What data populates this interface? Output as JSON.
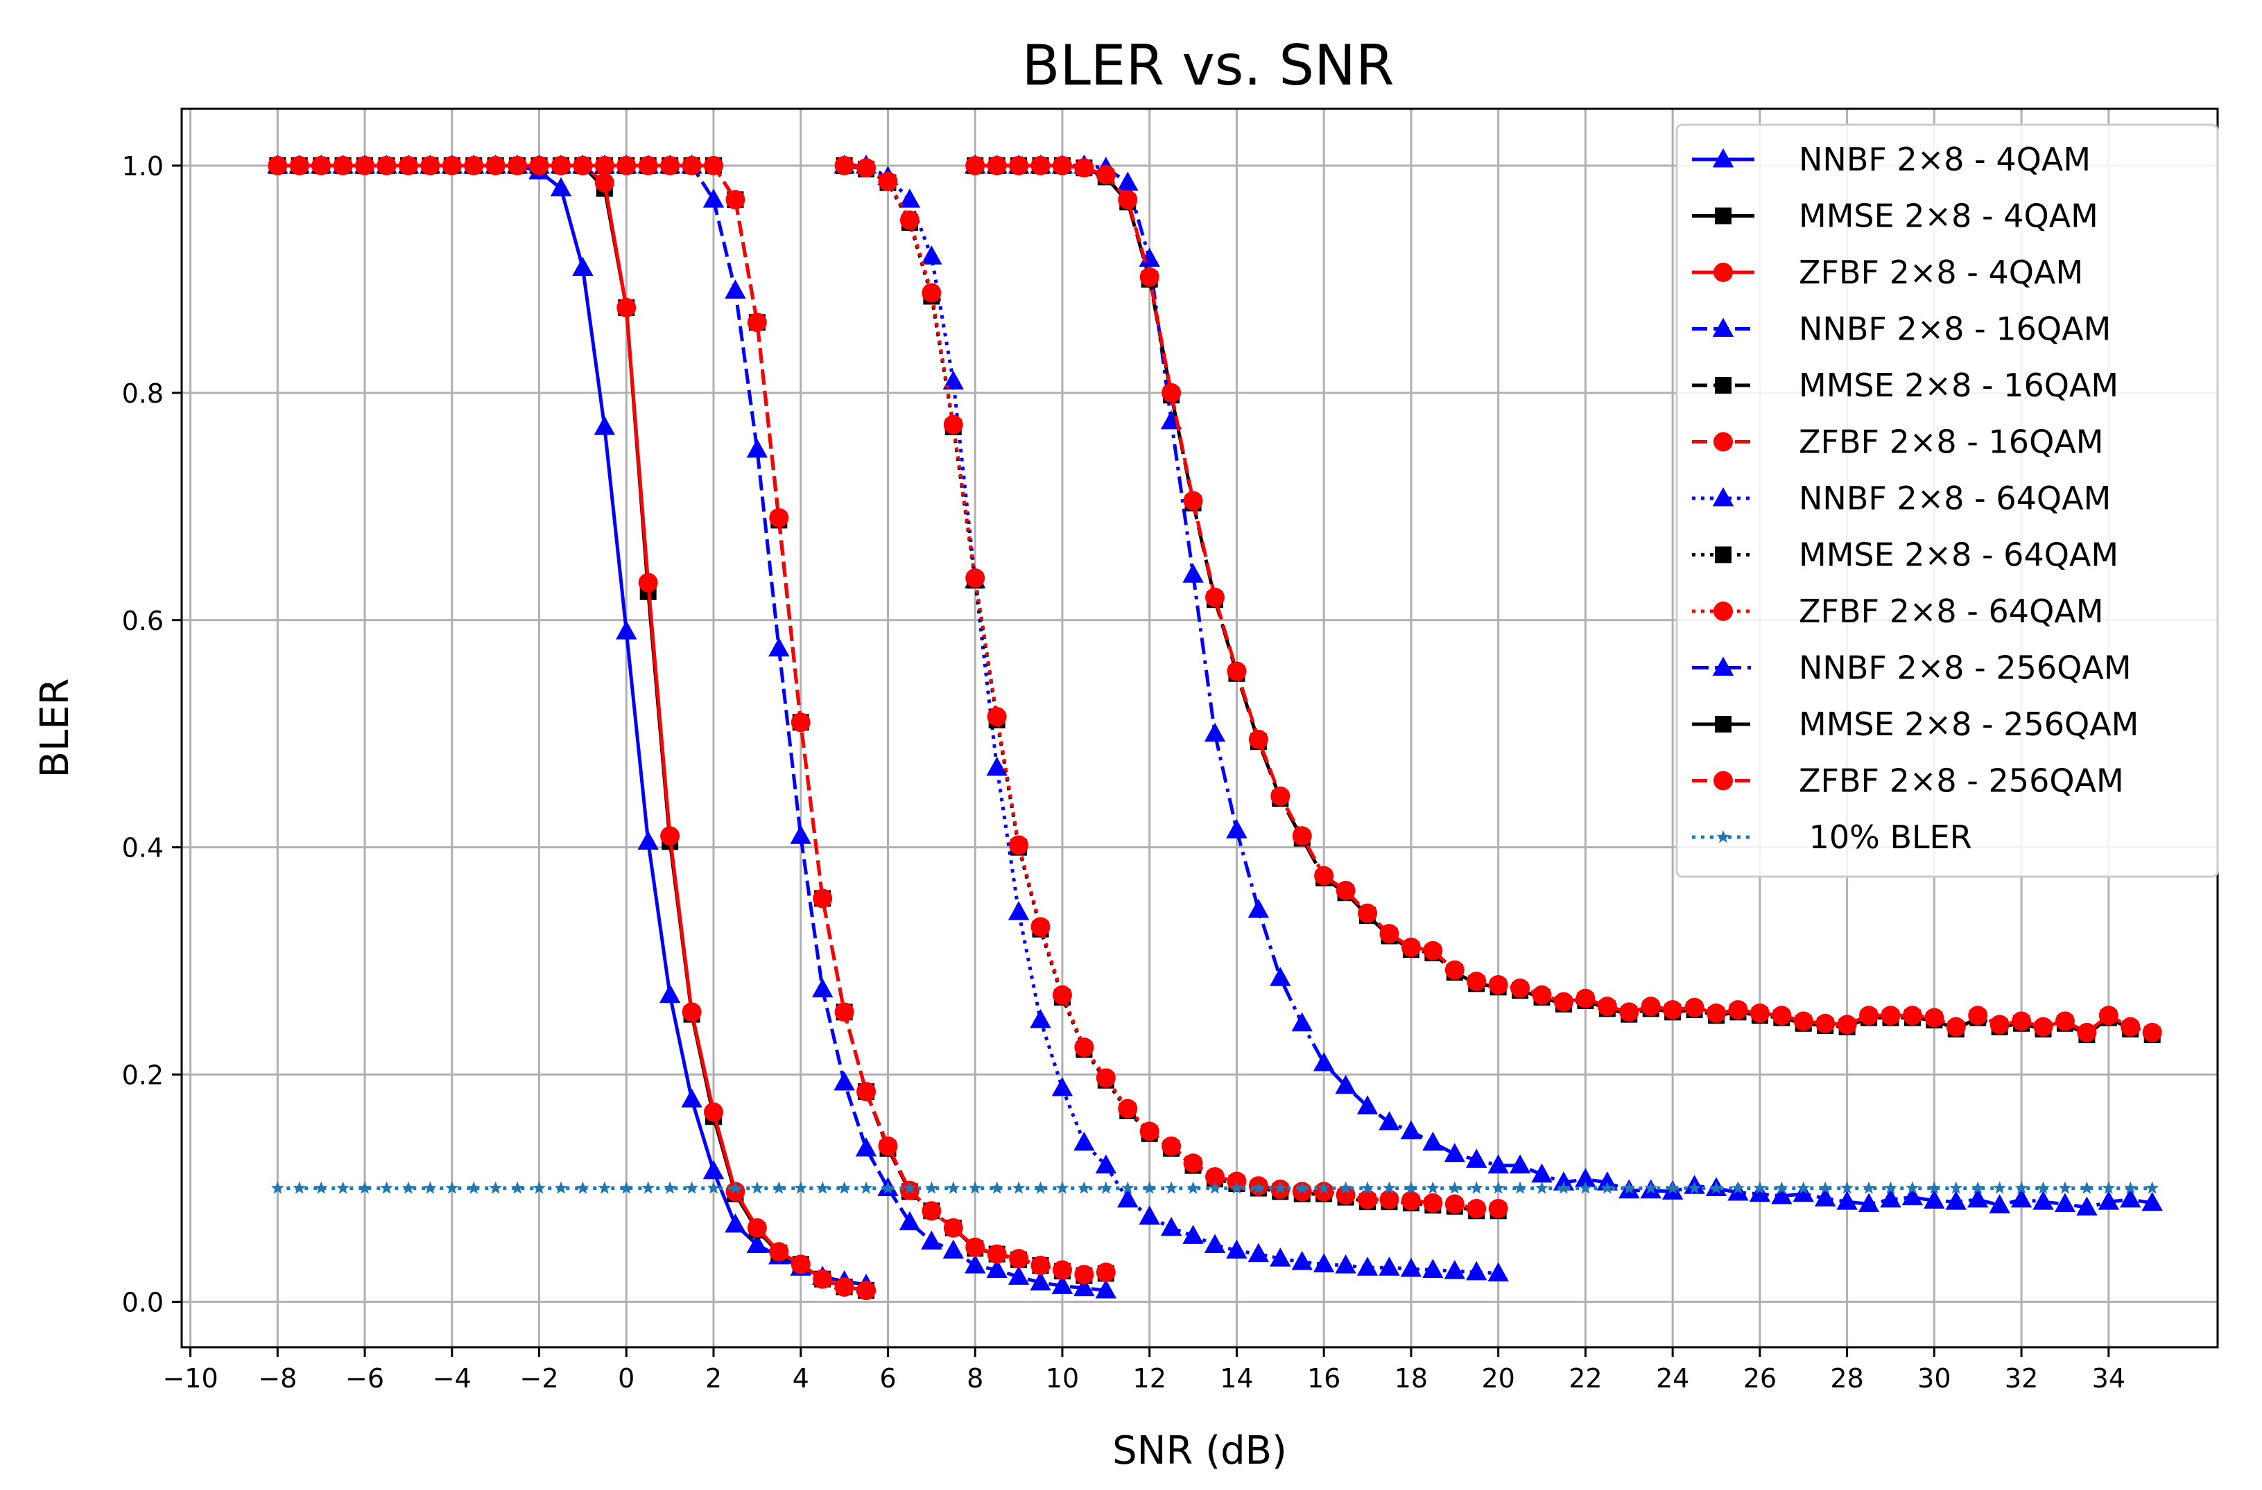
{
  "chart_data": {
    "type": "line",
    "title": "BLER vs. SNR",
    "xlabel": "SNR (dB)",
    "ylabel": "BLER",
    "xlim": [
      -10.2,
      36.5
    ],
    "ylim": [
      -0.04,
      1.05
    ],
    "grid": true,
    "legend_position": "top-right",
    "x_ticks": [
      -10,
      -8,
      -6,
      -4,
      -2,
      0,
      2,
      4,
      6,
      8,
      10,
      12,
      14,
      16,
      18,
      20,
      22,
      24,
      26,
      28,
      30,
      32,
      34
    ],
    "x_tick_labels": [
      "−10",
      "−8",
      "−6",
      "−4",
      "−2",
      "0",
      "2",
      "4",
      "6",
      "8",
      "10",
      "12",
      "14",
      "16",
      "18",
      "20",
      "22",
      "24",
      "26",
      "28",
      "30",
      "32",
      "34"
    ],
    "y_ticks": [
      0,
      0.2,
      0.4,
      0.6,
      0.8,
      1.0
    ],
    "y_tick_labels": [
      "0.0",
      "0.2",
      "0.4",
      "0.6",
      "0.8",
      "1.0"
    ],
    "colors": {
      "blue": "#0000ff",
      "black": "#000000",
      "red": "#ff0000",
      "ref": "#1f77b4"
    },
    "series": [
      {
        "name": "NNBF 2×8 - 4QAM",
        "color": "#0000ff",
        "dash": "solid",
        "marker": "triangle",
        "x": [
          -8,
          -7.5,
          -7,
          -6.5,
          -6,
          -5.5,
          -5,
          -4.5,
          -4,
          -3.5,
          -3,
          -2.5,
          -2,
          -1.5,
          -1,
          -0.5,
          0,
          0.5,
          1,
          1.5,
          2,
          2.5,
          3,
          3.5,
          4,
          4.5,
          5,
          5.5
        ],
        "y": [
          1,
          1,
          1,
          1,
          1,
          1,
          1,
          1,
          1,
          1,
          1,
          1,
          0.995,
          0.98,
          0.91,
          0.77,
          0.59,
          0.405,
          0.27,
          0.178,
          0.115,
          0.068,
          0.05,
          0.04,
          0.03,
          0.022,
          0.018,
          0.015
        ]
      },
      {
        "name": "MMSE 2×8 - 4QAM",
        "color": "#000000",
        "dash": "solid",
        "marker": "square",
        "x": [
          -8,
          -7.5,
          -7,
          -6.5,
          -6,
          -5.5,
          -5,
          -4.5,
          -4,
          -3.5,
          -3,
          -2.5,
          -2,
          -1.5,
          -1,
          -0.5,
          0,
          0.5,
          1,
          1.5,
          2,
          2.5,
          3,
          3.5,
          4,
          4.5,
          5,
          5.5
        ],
        "y": [
          1,
          1,
          1,
          1,
          1,
          1,
          1,
          1,
          1,
          1,
          1,
          1,
          1,
          1,
          1,
          0.98,
          0.875,
          0.625,
          0.405,
          0.253,
          0.163,
          0.095,
          0.063,
          0.043,
          0.033,
          0.02,
          0.013,
          0.01
        ]
      },
      {
        "name": "ZFBF 2×8 - 4QAM",
        "color": "#ff0000",
        "dash": "solid",
        "marker": "circle",
        "x": [
          -8,
          -7.5,
          -7,
          -6.5,
          -6,
          -5.5,
          -5,
          -4.5,
          -4,
          -3.5,
          -3,
          -2.5,
          -2,
          -1.5,
          -1,
          -0.5,
          0,
          0.5,
          1,
          1.5,
          2,
          2.5,
          3,
          3.5,
          4,
          4.5,
          5,
          5.5
        ],
        "y": [
          1,
          1,
          1,
          1,
          1,
          1,
          1,
          1,
          1,
          1,
          1,
          1,
          1,
          1,
          1,
          0.985,
          0.875,
          0.633,
          0.41,
          0.255,
          0.167,
          0.097,
          0.065,
          0.044,
          0.033,
          0.02,
          0.013,
          0.01
        ]
      },
      {
        "name": "NNBF 2×8 - 16QAM",
        "color": "#0000ff",
        "dash": "dashed",
        "marker": "triangle",
        "x": [
          -2,
          -1.5,
          -1,
          -0.5,
          0,
          0.5,
          1,
          1.5,
          2,
          2.5,
          3,
          3.5,
          4,
          4.5,
          5,
          5.5,
          6,
          6.5,
          7,
          7.5,
          8,
          8.5,
          9,
          9.5,
          10,
          10.5,
          11
        ],
        "y": [
          1,
          1,
          1,
          1,
          1,
          1,
          1,
          1,
          0.97,
          0.89,
          0.75,
          0.575,
          0.41,
          0.275,
          0.193,
          0.135,
          0.1,
          0.07,
          0.053,
          0.045,
          0.032,
          0.028,
          0.022,
          0.017,
          0.014,
          0.012,
          0.01
        ]
      },
      {
        "name": "MMSE 2×8 - 16QAM",
        "color": "#000000",
        "dash": "dashed",
        "marker": "square",
        "x": [
          -2,
          -1.5,
          -1,
          -0.5,
          0,
          0.5,
          1,
          1.5,
          2,
          2.5,
          3,
          3.5,
          4,
          4.5,
          5,
          5.5,
          6,
          6.5,
          7,
          7.5,
          8,
          8.5,
          9,
          9.5,
          10,
          10.5,
          11
        ],
        "y": [
          1,
          1,
          1,
          1,
          1,
          1,
          1,
          1,
          1,
          0.97,
          0.862,
          0.688,
          0.51,
          0.355,
          0.255,
          0.185,
          0.135,
          0.097,
          0.08,
          0.065,
          0.047,
          0.042,
          0.037,
          0.032,
          0.027,
          0.023,
          0.025
        ]
      },
      {
        "name": "ZFBF 2×8 - 16QAM",
        "color": "#ff0000",
        "dash": "dashed",
        "marker": "circle",
        "x": [
          -2,
          -1.5,
          -1,
          -0.5,
          0,
          0.5,
          1,
          1.5,
          2,
          2.5,
          3,
          3.5,
          4,
          4.5,
          5,
          5.5,
          6,
          6.5,
          7,
          7.5,
          8,
          8.5,
          9,
          9.5,
          10,
          10.5,
          11
        ],
        "y": [
          1,
          1,
          1,
          1,
          1,
          1,
          1,
          1,
          1,
          0.97,
          0.862,
          0.69,
          0.51,
          0.355,
          0.255,
          0.185,
          0.137,
          0.098,
          0.08,
          0.065,
          0.048,
          0.042,
          0.038,
          0.032,
          0.028,
          0.024,
          0.026
        ]
      },
      {
        "name": "NNBF 2×8 - 64QAM",
        "color": "#0000ff",
        "dash": "dotted",
        "marker": "triangle",
        "x": [
          5,
          5.5,
          6,
          6.5,
          7,
          7.5,
          8,
          8.5,
          9,
          9.5,
          10,
          10.5,
          11,
          11.5,
          12,
          12.5,
          13,
          13.5,
          14,
          14.5,
          15,
          15.5,
          16,
          16.5,
          17,
          17.5,
          18,
          18.5,
          19,
          19.5,
          20
        ],
        "y": [
          1,
          1,
          0.99,
          0.97,
          0.92,
          0.81,
          0.635,
          0.47,
          0.343,
          0.248,
          0.188,
          0.14,
          0.12,
          0.09,
          0.075,
          0.065,
          0.058,
          0.05,
          0.045,
          0.042,
          0.038,
          0.035,
          0.033,
          0.032,
          0.03,
          0.03,
          0.029,
          0.028,
          0.027,
          0.026,
          0.025
        ]
      },
      {
        "name": "MMSE 2×8 - 64QAM",
        "color": "#000000",
        "dash": "dotted",
        "marker": "square",
        "x": [
          5,
          5.5,
          6,
          6.5,
          7,
          7.5,
          8,
          8.5,
          9,
          9.5,
          10,
          10.5,
          11,
          11.5,
          12,
          12.5,
          13,
          13.5,
          14,
          14.5,
          15,
          15.5,
          16,
          16.5,
          17,
          17.5,
          18,
          18.5,
          19,
          19.5,
          20
        ],
        "y": [
          1,
          0.997,
          0.985,
          0.95,
          0.885,
          0.77,
          0.635,
          0.512,
          0.4,
          0.328,
          0.268,
          0.222,
          0.195,
          0.168,
          0.148,
          0.135,
          0.12,
          0.108,
          0.104,
          0.1,
          0.097,
          0.095,
          0.095,
          0.092,
          0.088,
          0.088,
          0.087,
          0.085,
          0.084,
          0.08,
          0.08
        ]
      },
      {
        "name": "ZFBF 2×8 - 64QAM",
        "color": "#ff0000",
        "dash": "dotted",
        "marker": "circle",
        "x": [
          5,
          5.5,
          6,
          6.5,
          7,
          7.5,
          8,
          8.5,
          9,
          9.5,
          10,
          10.5,
          11,
          11.5,
          12,
          12.5,
          13,
          13.5,
          14,
          14.5,
          15,
          15.5,
          16,
          16.5,
          17,
          17.5,
          18,
          18.5,
          19,
          19.5,
          20
        ],
        "y": [
          1,
          0.998,
          0.986,
          0.952,
          0.888,
          0.772,
          0.637,
          0.515,
          0.402,
          0.33,
          0.27,
          0.224,
          0.197,
          0.17,
          0.15,
          0.137,
          0.122,
          0.11,
          0.106,
          0.102,
          0.099,
          0.097,
          0.097,
          0.094,
          0.09,
          0.09,
          0.089,
          0.087,
          0.086,
          0.082,
          0.082
        ]
      },
      {
        "name": "NNBF 2×8 - 256QAM",
        "color": "#0000ff",
        "dash": "dashdot",
        "marker": "triangle",
        "x": [
          8,
          8.5,
          9,
          9.5,
          10,
          10.5,
          11,
          11.5,
          12,
          12.5,
          13,
          13.5,
          14,
          14.5,
          15,
          15.5,
          16,
          16.5,
          17,
          17.5,
          18,
          18.5,
          19,
          19.5,
          20,
          20.5,
          21,
          21.5,
          22,
          22.5,
          23,
          23.5,
          24,
          24.5,
          25,
          25.5,
          26,
          26.5,
          27,
          27.5,
          28,
          28.5,
          29,
          29.5,
          30,
          30.5,
          31,
          31.5,
          32,
          32.5,
          33,
          33.5,
          34,
          34.5,
          35
        ],
        "y": [
          1,
          1,
          1,
          1,
          1,
          1,
          0.998,
          0.985,
          0.918,
          0.775,
          0.64,
          0.5,
          0.415,
          0.345,
          0.285,
          0.245,
          0.21,
          0.19,
          0.172,
          0.158,
          0.15,
          0.14,
          0.13,
          0.125,
          0.12,
          0.12,
          0.112,
          0.105,
          0.108,
          0.105,
          0.098,
          0.098,
          0.097,
          0.102,
          0.1,
          0.096,
          0.095,
          0.093,
          0.095,
          0.091,
          0.088,
          0.086,
          0.09,
          0.092,
          0.089,
          0.088,
          0.09,
          0.085,
          0.09,
          0.088,
          0.086,
          0.083,
          0.088,
          0.09,
          0.087
        ]
      },
      {
        "name": "MMSE 2×8 - 256QAM",
        "color": "#000000",
        "dash": "longdash",
        "marker": "square",
        "x": [
          8,
          8.5,
          9,
          9.5,
          10,
          10.5,
          11,
          11.5,
          12,
          12.5,
          13,
          13.5,
          14,
          14.5,
          15,
          15.5,
          16,
          16.5,
          17,
          17.5,
          18,
          18.5,
          19,
          19.5,
          20,
          20.5,
          21,
          21.5,
          22,
          22.5,
          23,
          23.5,
          24,
          24.5,
          25,
          25.5,
          26,
          26.5,
          27,
          27.5,
          28,
          28.5,
          29,
          29.5,
          30,
          30.5,
          31,
          31.5,
          32,
          32.5,
          33,
          33.5,
          34,
          34.5,
          35
        ],
        "y": [
          1,
          1,
          1,
          1,
          1,
          0.998,
          0.99,
          0.968,
          0.9,
          0.798,
          0.703,
          0.618,
          0.553,
          0.493,
          0.443,
          0.408,
          0.373,
          0.36,
          0.34,
          0.322,
          0.31,
          0.307,
          0.29,
          0.28,
          0.277,
          0.274,
          0.268,
          0.262,
          0.265,
          0.258,
          0.253,
          0.258,
          0.255,
          0.257,
          0.252,
          0.255,
          0.252,
          0.25,
          0.245,
          0.243,
          0.242,
          0.25,
          0.25,
          0.25,
          0.248,
          0.24,
          0.25,
          0.242,
          0.245,
          0.24,
          0.245,
          0.235,
          0.25,
          0.24,
          0.235
        ]
      },
      {
        "name": "ZFBF 2×8 - 256QAM",
        "color": "#ff0000",
        "dash": "dashed",
        "marker": "circle",
        "x": [
          8,
          8.5,
          9,
          9.5,
          10,
          10.5,
          11,
          11.5,
          12,
          12.5,
          13,
          13.5,
          14,
          14.5,
          15,
          15.5,
          16,
          16.5,
          17,
          17.5,
          18,
          18.5,
          19,
          19.5,
          20,
          20.5,
          21,
          21.5,
          22,
          22.5,
          23,
          23.5,
          24,
          24.5,
          25,
          25.5,
          26,
          26.5,
          27,
          27.5,
          28,
          28.5,
          29,
          29.5,
          30,
          30.5,
          31,
          31.5,
          32,
          32.5,
          33,
          33.5,
          34,
          34.5,
          35
        ],
        "y": [
          1,
          1,
          1,
          1,
          1,
          0.998,
          0.992,
          0.97,
          0.902,
          0.8,
          0.705,
          0.62,
          0.555,
          0.495,
          0.445,
          0.41,
          0.375,
          0.362,
          0.342,
          0.324,
          0.312,
          0.309,
          0.292,
          0.282,
          0.279,
          0.276,
          0.27,
          0.264,
          0.267,
          0.26,
          0.255,
          0.26,
          0.257,
          0.259,
          0.254,
          0.257,
          0.254,
          0.252,
          0.247,
          0.245,
          0.244,
          0.252,
          0.252,
          0.252,
          0.25,
          0.242,
          0.252,
          0.244,
          0.247,
          0.242,
          0.247,
          0.237,
          0.252,
          0.242,
          0.237
        ]
      },
      {
        "name": " 10% BLER",
        "color": "#1f77b4",
        "dash": "dotted",
        "marker": "star",
        "x": [
          -8,
          -7.5,
          -7,
          -6.5,
          -6,
          -5.5,
          -5,
          -4.5,
          -4,
          -3.5,
          -3,
          -2.5,
          -2,
          -1.5,
          -1,
          -0.5,
          0,
          0.5,
          1,
          1.5,
          2,
          2.5,
          3,
          3.5,
          4,
          4.5,
          5,
          5.5,
          6,
          6.5,
          7,
          7.5,
          8,
          8.5,
          9,
          9.5,
          10,
          10.5,
          11,
          11.5,
          12,
          12.5,
          13,
          13.5,
          14,
          14.5,
          15,
          15.5,
          16,
          16.5,
          17,
          17.5,
          18,
          18.5,
          19,
          19.5,
          20,
          20.5,
          21,
          21.5,
          22,
          22.5,
          23,
          23.5,
          24,
          24.5,
          25,
          25.5,
          26,
          26.5,
          27,
          27.5,
          28,
          28.5,
          29,
          29.5,
          30,
          30.5,
          31,
          31.5,
          32,
          32.5,
          33,
          33.5,
          34,
          34.5,
          35
        ],
        "y": [
          0.1,
          0.1,
          0.1,
          0.1,
          0.1,
          0.1,
          0.1,
          0.1,
          0.1,
          0.1,
          0.1,
          0.1,
          0.1,
          0.1,
          0.1,
          0.1,
          0.1,
          0.1,
          0.1,
          0.1,
          0.1,
          0.1,
          0.1,
          0.1,
          0.1,
          0.1,
          0.1,
          0.1,
          0.1,
          0.1,
          0.1,
          0.1,
          0.1,
          0.1,
          0.1,
          0.1,
          0.1,
          0.1,
          0.1,
          0.1,
          0.1,
          0.1,
          0.1,
          0.1,
          0.1,
          0.1,
          0.1,
          0.1,
          0.1,
          0.1,
          0.1,
          0.1,
          0.1,
          0.1,
          0.1,
          0.1,
          0.1,
          0.1,
          0.1,
          0.1,
          0.1,
          0.1,
          0.1,
          0.1,
          0.1,
          0.1,
          0.1,
          0.1,
          0.1,
          0.1,
          0.1,
          0.1,
          0.1,
          0.1,
          0.1,
          0.1,
          0.1,
          0.1,
          0.1,
          0.1,
          0.1,
          0.1,
          0.1,
          0.1,
          0.1,
          0.1,
          0.1
        ]
      }
    ]
  }
}
